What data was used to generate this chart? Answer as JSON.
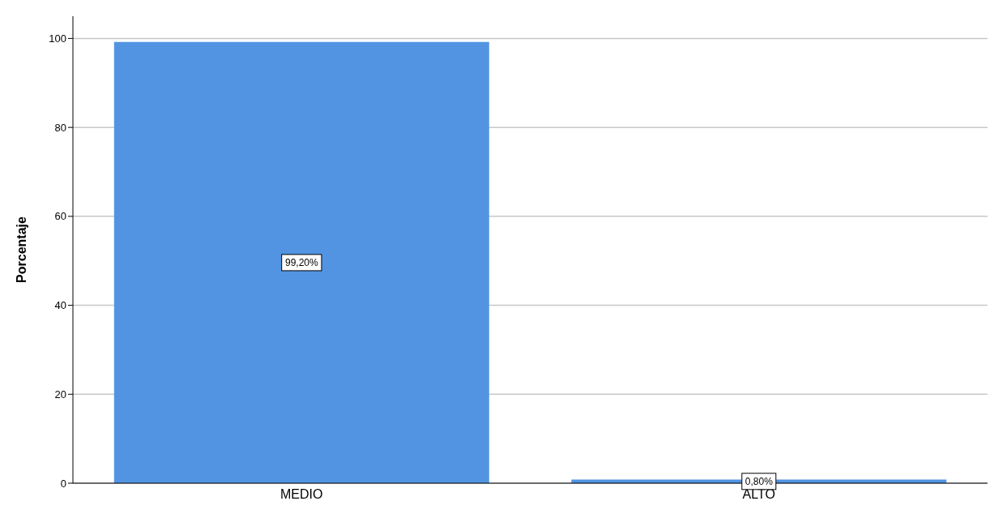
{
  "chart_data": {
    "type": "bar",
    "ylabel": "Porcentaje",
    "categories": [
      "MEDIO",
      "ALTO"
    ],
    "values": [
      99.2,
      0.8
    ],
    "value_labels": [
      "99,20%",
      "0,80%"
    ],
    "color": "#5294e2",
    "ylim": [
      0,
      105
    ],
    "yticks": [
      0,
      20,
      40,
      60,
      80,
      100
    ],
    "grid": "y"
  }
}
